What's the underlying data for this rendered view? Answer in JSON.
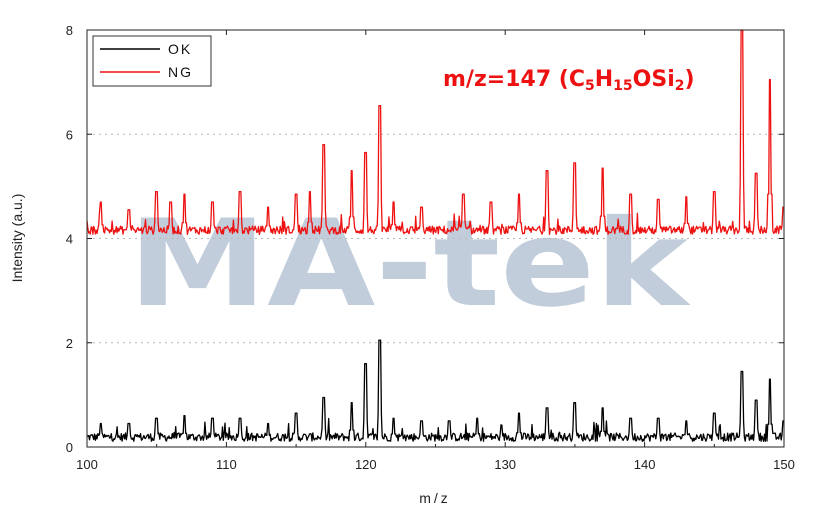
{
  "chart_data": {
    "type": "line",
    "xlabel": "m/z",
    "ylabel": "Intensity (a.u.)",
    "xlim": [
      100,
      150
    ],
    "ylim": [
      0,
      8
    ],
    "x_ticks": [
      100,
      110,
      120,
      130,
      140,
      150
    ],
    "y_ticks": [
      0,
      2,
      4,
      6,
      8
    ],
    "grid": "horizontal dotted",
    "legend_position": "top-left",
    "annotation": {
      "text": "m/z=147 (C5H15OSi2)",
      "parts": [
        "m/z=147 (C",
        "5",
        "H",
        "15",
        "OSi",
        "2",
        ")"
      ]
    },
    "watermark": "MA-tek",
    "series": [
      {
        "name": "OK",
        "color": "#000000",
        "baseline": 0.15,
        "peaks": [
          [
            101,
            0.45
          ],
          [
            103,
            0.45
          ],
          [
            105,
            0.55
          ],
          [
            107,
            0.6
          ],
          [
            109,
            0.55
          ],
          [
            111,
            0.55
          ],
          [
            113,
            0.45
          ],
          [
            115,
            0.65
          ],
          [
            117,
            0.95
          ],
          [
            119,
            0.85
          ],
          [
            120,
            1.6
          ],
          [
            121,
            2.05
          ],
          [
            122,
            0.55
          ],
          [
            124,
            0.5
          ],
          [
            126,
            0.5
          ],
          [
            128,
            0.55
          ],
          [
            131,
            0.65
          ],
          [
            133,
            0.75
          ],
          [
            135,
            0.85
          ],
          [
            137,
            0.75
          ],
          [
            139,
            0.55
          ],
          [
            141,
            0.55
          ],
          [
            143,
            0.5
          ],
          [
            145,
            0.65
          ],
          [
            147,
            1.45
          ],
          [
            148,
            0.9
          ],
          [
            149,
            1.3
          ],
          [
            150,
            0.5
          ]
        ]
      },
      {
        "name": "NG",
        "color": "#ee1111",
        "baseline": 4.12,
        "peaks": [
          [
            101,
            4.7
          ],
          [
            103,
            4.55
          ],
          [
            105,
            4.9
          ],
          [
            106,
            4.7
          ],
          [
            107,
            4.85
          ],
          [
            109,
            4.7
          ],
          [
            111,
            4.9
          ],
          [
            113,
            4.6
          ],
          [
            115,
            4.85
          ],
          [
            116,
            4.9
          ],
          [
            117,
            5.8
          ],
          [
            119,
            5.3
          ],
          [
            120,
            5.65
          ],
          [
            121,
            6.55
          ],
          [
            122,
            4.7
          ],
          [
            124,
            4.6
          ],
          [
            127,
            4.85
          ],
          [
            129,
            4.7
          ],
          [
            131,
            4.85
          ],
          [
            133,
            5.3
          ],
          [
            135,
            5.45
          ],
          [
            137,
            5.35
          ],
          [
            139,
            4.85
          ],
          [
            141,
            4.75
          ],
          [
            143,
            4.8
          ],
          [
            145,
            4.9
          ],
          [
            147,
            8.0
          ],
          [
            148,
            5.25
          ],
          [
            149,
            7.05
          ],
          [
            150,
            4.6
          ]
        ]
      }
    ]
  }
}
